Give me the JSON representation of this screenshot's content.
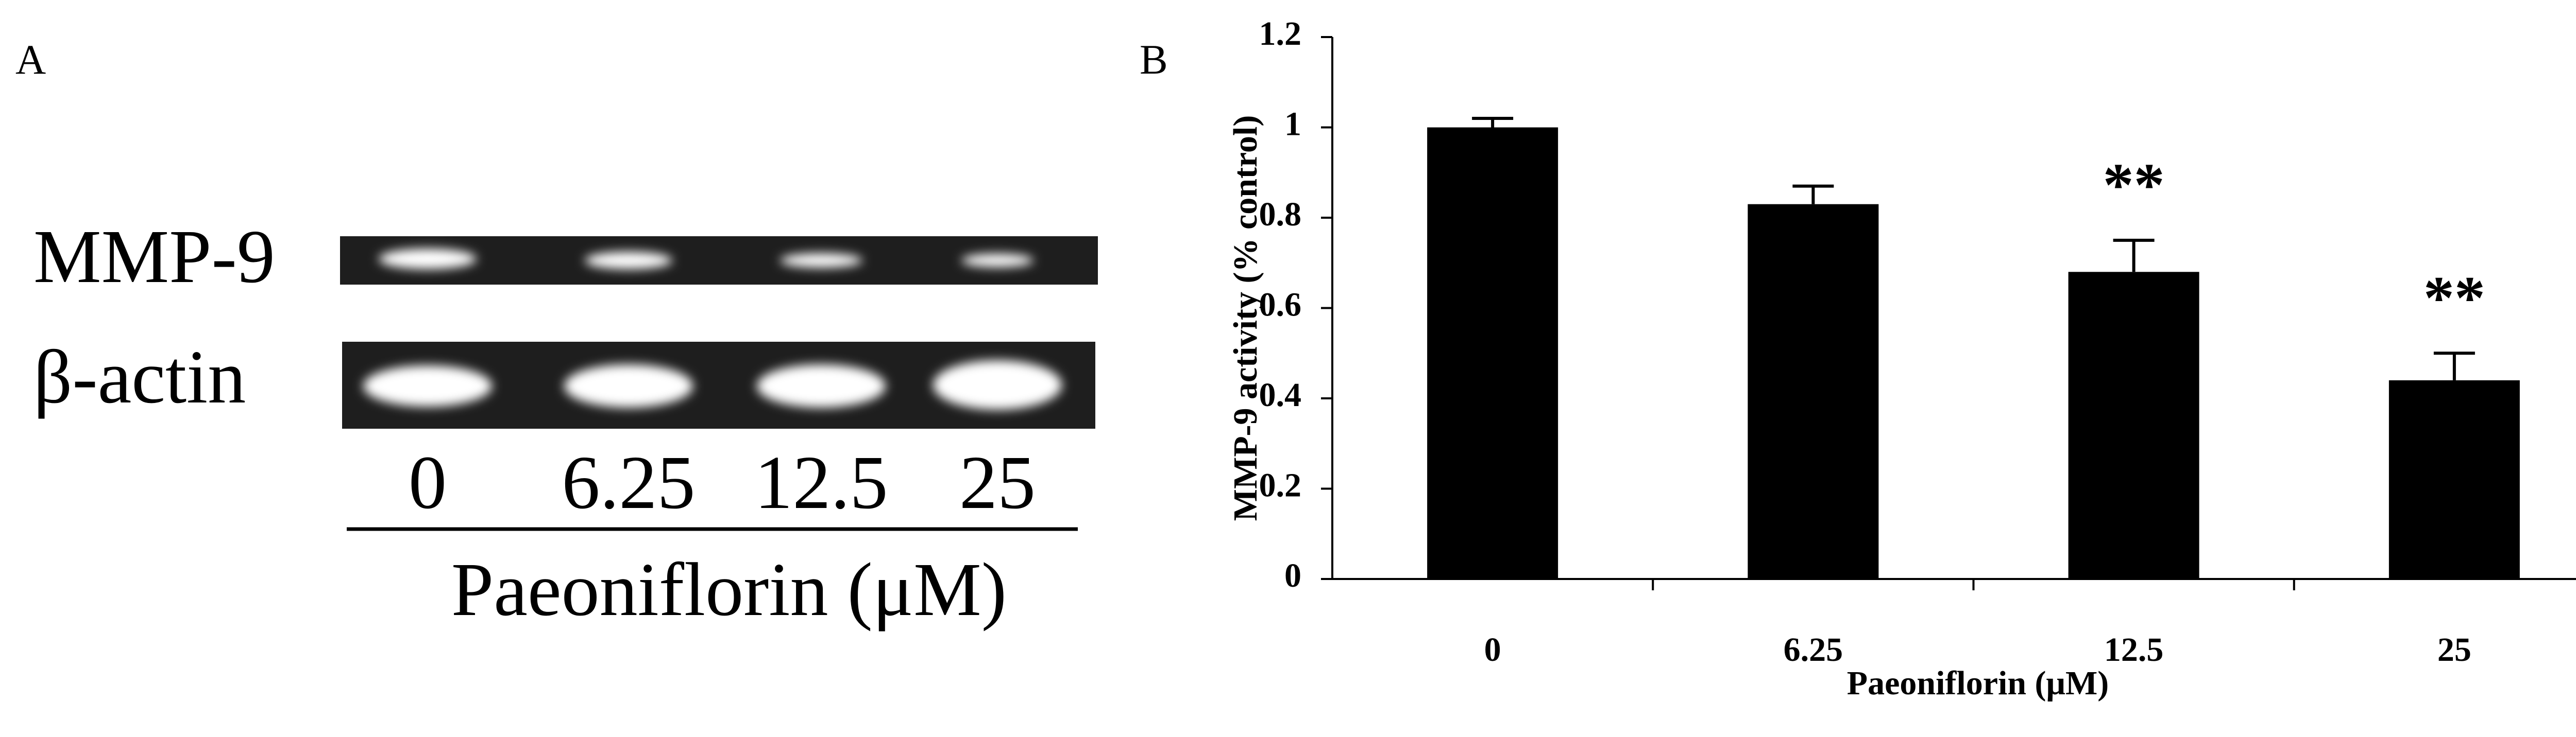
{
  "panel_a": {
    "panel_label": "A",
    "row_labels": [
      "MMP-9",
      "β-actin"
    ],
    "lanes": [
      "0",
      "6.25",
      "12.5",
      "25"
    ],
    "axis_label": "Paeoniflorin (μM)"
  },
  "chart_data": {
    "type": "bar",
    "panel_label": "B",
    "x_label": "Paeoniflorin (μM)",
    "y_label": "MMP-9 activity (% control)",
    "categories": [
      "0",
      "6.25",
      "12.5",
      "25"
    ],
    "values": [
      1.0,
      0.83,
      0.68,
      0.44
    ],
    "errors": [
      0.02,
      0.04,
      0.07,
      0.06
    ],
    "value_annotations": [
      null,
      null,
      "**",
      "**"
    ],
    "color": "#000000",
    "ylim": [
      0,
      1.2
    ],
    "yticks": [
      0,
      0.2,
      0.4,
      0.6,
      0.8,
      1,
      1.2
    ],
    "grid": false
  }
}
